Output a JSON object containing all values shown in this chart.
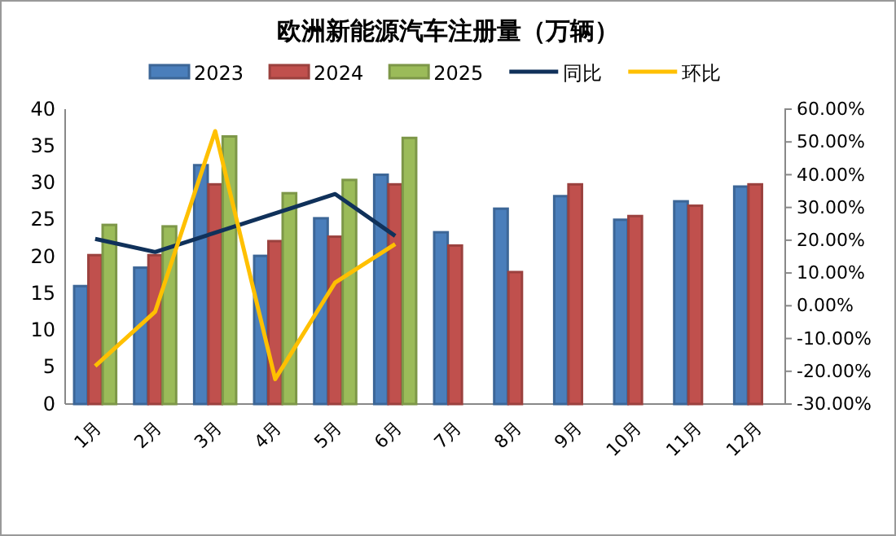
{
  "chart_data": {
    "type": "bar",
    "title": "欧洲新能源汽车注册量（万辆）",
    "categories": [
      "1月",
      "2月",
      "3月",
      "4月",
      "5月",
      "6月",
      "7月",
      "8月",
      "9月",
      "10月",
      "11月",
      "12月"
    ],
    "series": [
      {
        "name": "2023",
        "color": "#4a7ebb",
        "values": [
          16.0,
          18.5,
          32.4,
          20.1,
          25.2,
          31.1,
          23.3,
          26.5,
          28.2,
          25.0,
          27.5,
          29.5
        ]
      },
      {
        "name": "2024",
        "color": "#c0504d",
        "values": [
          20.2,
          20.2,
          29.8,
          22.1,
          22.7,
          29.8,
          21.5,
          17.9,
          29.8,
          25.5,
          26.9,
          29.8
        ]
      },
      {
        "name": "2025",
        "color": "#9bbb59",
        "values": [
          24.3,
          24.1,
          36.3,
          28.6,
          30.4,
          36.1,
          null,
          null,
          null,
          null,
          null,
          null
        ]
      },
      {
        "name": "同比",
        "type": "line",
        "axis": "y2",
        "color": "#10315a",
        "values": [
          20.4,
          16.4,
          22.3,
          28.2,
          34.1,
          21.3,
          null,
          null,
          null,
          null,
          null,
          null
        ]
      },
      {
        "name": "环比",
        "type": "line",
        "axis": "y2",
        "color": "#ffc000",
        "values": [
          -18.4,
          -1.8,
          53.3,
          -22.4,
          7.1,
          18.8,
          null,
          null,
          null,
          null,
          null,
          null
        ]
      }
    ],
    "ylim": [
      0,
      40
    ],
    "yticks": [
      0,
      5,
      10,
      15,
      20,
      25,
      30,
      35,
      40
    ],
    "y2lim": [
      -30,
      60
    ],
    "y2ticks": [
      {
        "value": -30,
        "label": "-30.00%"
      },
      {
        "value": -20,
        "label": "-20.00%"
      },
      {
        "value": -10,
        "label": "-10.00%"
      },
      {
        "value": 0,
        "label": "0.00%"
      },
      {
        "value": 10,
        "label": "10.00%"
      },
      {
        "value": 20,
        "label": "20.00%"
      },
      {
        "value": 30,
        "label": "30.00%"
      },
      {
        "value": 40,
        "label": "40.00%"
      },
      {
        "value": 50,
        "label": "50.00%"
      },
      {
        "value": 60,
        "label": "60.00%"
      }
    ],
    "legend": "top",
    "grid": false
  }
}
